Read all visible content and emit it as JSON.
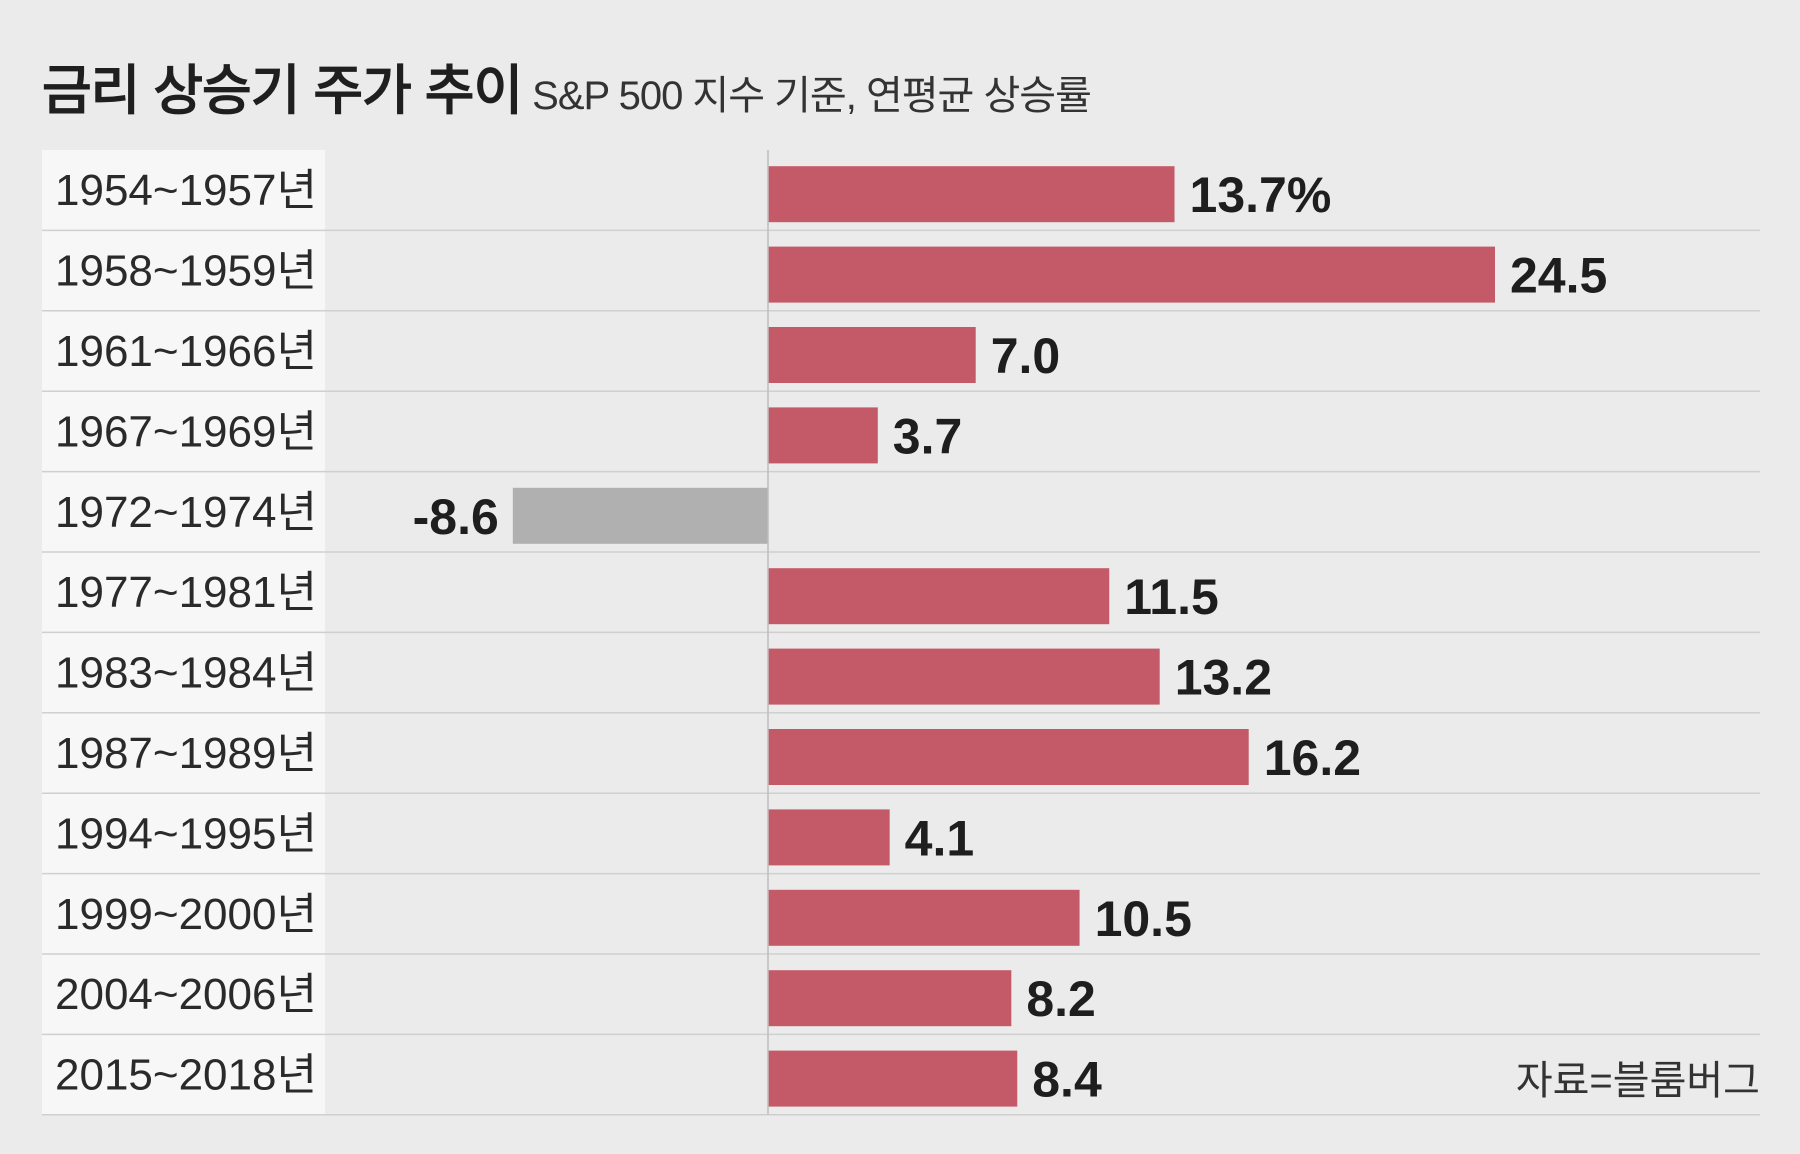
{
  "title": "금리 상승기 주가 추이",
  "subtitle": "S&P 500 지수 기준, 연평균 상승률",
  "source": "자료=블룸버그",
  "colors": {
    "background": "#ebebeb",
    "label_column": "#f7f7f7",
    "positive_bar": "#c45a67",
    "negative_bar": "#b0b0b0",
    "row_divider": "#cfcfcf",
    "zero_axis": "#bdbdbd"
  },
  "chart_data": {
    "type": "bar",
    "orientation": "horizontal",
    "categories": [
      "1954~1957년",
      "1958~1959년",
      "1961~1966년",
      "1967~1969년",
      "1972~1974년",
      "1977~1981년",
      "1983~1984년",
      "1987~1989년",
      "1994~1995년",
      "1999~2000년",
      "2004~2006년",
      "2015~2018년"
    ],
    "values": [
      13.7,
      24.5,
      7.0,
      3.7,
      -8.6,
      11.5,
      13.2,
      16.2,
      4.1,
      10.5,
      8.2,
      8.4
    ],
    "value_labels": [
      "13.7%",
      "24.5",
      "7.0",
      "3.7",
      "-8.6",
      "11.5",
      "13.2",
      "16.2",
      "4.1",
      "10.5",
      "8.2",
      "8.4"
    ],
    "title": "금리 상승기 주가 추이",
    "subtitle": "S&P 500 지수 기준, 연평균 상승률",
    "xlabel": "",
    "ylabel": "",
    "xlim": [
      -12.4,
      27
    ],
    "grid": false,
    "legend": "none"
  }
}
